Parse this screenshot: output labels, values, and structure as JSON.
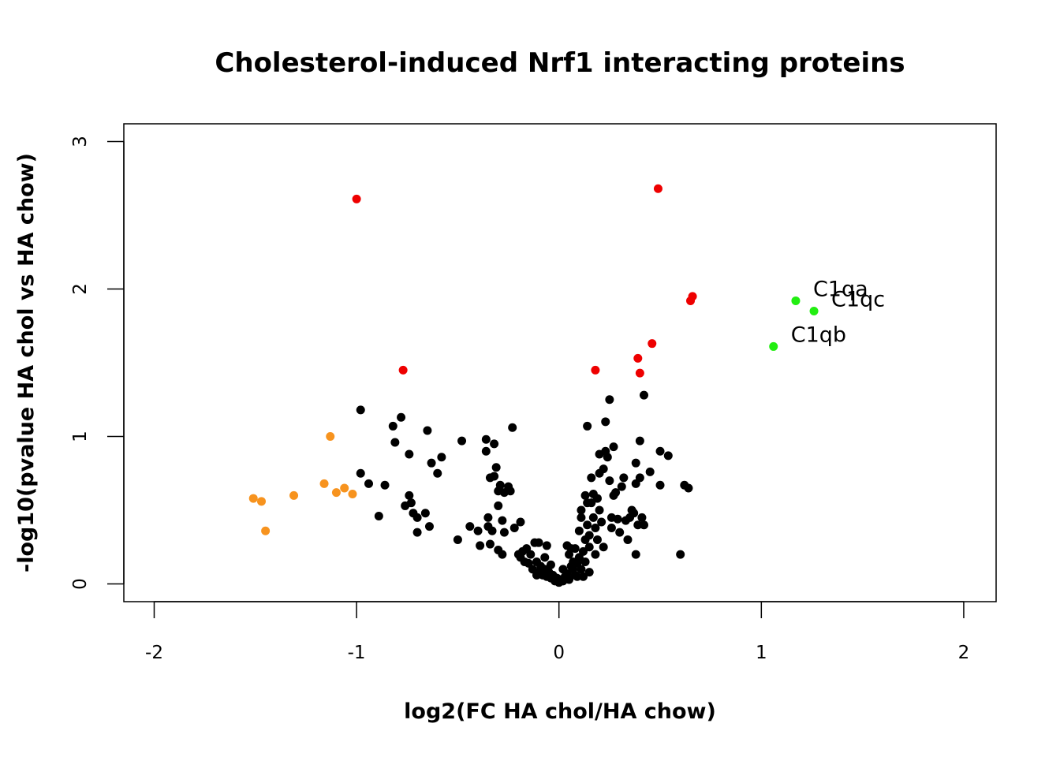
{
  "chart_data": {
    "type": "scatter",
    "title": "Cholesterol-induced Nrf1 interacting proteins",
    "xlabel": "log2(FC HA chol/HA chow)",
    "ylabel": "-log10(pvalue HA chol vs HA chow)",
    "xlim": [
      -2.15,
      2.16
    ],
    "ylim": [
      -0.12,
      3.12
    ],
    "xticks": [
      -2,
      -1,
      0,
      1,
      2
    ],
    "xtick_labels": [
      "-2",
      "-1",
      "0",
      "1",
      "2"
    ],
    "yticks": [
      0,
      1,
      2,
      3
    ],
    "ytick_labels": [
      "0",
      "1",
      "2",
      "3"
    ],
    "grid": false,
    "legend": "none",
    "colors": {
      "black": "#000000",
      "red": "#ee0000",
      "orange": "#f7931e",
      "green": "#22ee11"
    },
    "points": {
      "black": [
        [
          -0.98,
          1.18
        ],
        [
          -0.82,
          1.07
        ],
        [
          -0.78,
          1.13
        ],
        [
          -0.65,
          1.04
        ],
        [
          -0.81,
          0.96
        ],
        [
          -0.74,
          0.88
        ],
        [
          -0.63,
          0.82
        ],
        [
          -0.58,
          0.86
        ],
        [
          -0.6,
          0.75
        ],
        [
          -0.98,
          0.75
        ],
        [
          -0.94,
          0.68
        ],
        [
          -0.86,
          0.67
        ],
        [
          -0.76,
          0.53
        ],
        [
          -0.74,
          0.6
        ],
        [
          -0.73,
          0.55
        ],
        [
          -0.72,
          0.48
        ],
        [
          -0.7,
          0.45
        ],
        [
          -0.66,
          0.48
        ],
        [
          -0.64,
          0.39
        ],
        [
          -0.7,
          0.35
        ],
        [
          -0.89,
          0.46
        ],
        [
          -0.48,
          0.97
        ],
        [
          -0.36,
          0.98
        ],
        [
          -0.36,
          0.9
        ],
        [
          -0.32,
          0.95
        ],
        [
          -0.23,
          1.06
        ],
        [
          -0.34,
          0.72
        ],
        [
          -0.32,
          0.73
        ],
        [
          -0.31,
          0.79
        ],
        [
          -0.3,
          0.63
        ],
        [
          -0.29,
          0.67
        ],
        [
          -0.27,
          0.62
        ],
        [
          -0.25,
          0.66
        ],
        [
          -0.24,
          0.63
        ],
        [
          -0.35,
          0.45
        ],
        [
          -0.35,
          0.39
        ],
        [
          -0.33,
          0.36
        ],
        [
          -0.3,
          0.53
        ],
        [
          -0.28,
          0.43
        ],
        [
          -0.27,
          0.35
        ],
        [
          -0.22,
          0.38
        ],
        [
          -0.19,
          0.42
        ],
        [
          -0.5,
          0.3
        ],
        [
          -0.44,
          0.39
        ],
        [
          -0.4,
          0.36
        ],
        [
          -0.39,
          0.26
        ],
        [
          -0.34,
          0.27
        ],
        [
          -0.3,
          0.23
        ],
        [
          -0.28,
          0.2
        ],
        [
          -0.2,
          0.2
        ],
        [
          -0.19,
          0.18
        ],
        [
          -0.18,
          0.22
        ],
        [
          -0.17,
          0.15
        ],
        [
          -0.16,
          0.24
        ],
        [
          -0.15,
          0.14
        ],
        [
          -0.14,
          0.2
        ],
        [
          -0.13,
          0.1
        ],
        [
          -0.12,
          0.28
        ],
        [
          -0.11,
          0.15
        ],
        [
          -0.1,
          0.28
        ],
        [
          -0.1,
          0.08
        ],
        [
          -0.09,
          0.12
        ],
        [
          -0.08,
          0.06
        ],
        [
          -0.07,
          0.1
        ],
        [
          -0.06,
          0.26
        ],
        [
          -0.06,
          0.05
        ],
        [
          -0.05,
          0.08
        ],
        [
          -0.04,
          0.04
        ],
        [
          -0.03,
          0.06
        ],
        [
          -0.02,
          0.02
        ],
        [
          -0.01,
          0.04
        ],
        [
          0.0,
          0.01
        ],
        [
          0.01,
          0.03
        ],
        [
          0.02,
          0.02
        ],
        [
          0.03,
          0.05
        ],
        [
          0.04,
          0.07
        ],
        [
          0.04,
          0.26
        ],
        [
          0.05,
          0.2
        ],
        [
          0.05,
          0.03
        ],
        [
          0.06,
          0.24
        ],
        [
          0.07,
          0.1
        ],
        [
          0.08,
          0.06
        ],
        [
          0.09,
          0.14
        ],
        [
          0.1,
          0.18
        ],
        [
          0.1,
          0.36
        ],
        [
          0.11,
          0.45
        ],
        [
          0.11,
          0.5
        ],
        [
          0.12,
          0.22
        ],
        [
          0.12,
          0.05
        ],
        [
          0.13,
          0.6
        ],
        [
          0.13,
          0.3
        ],
        [
          0.14,
          0.55
        ],
        [
          0.14,
          0.4
        ],
        [
          0.15,
          0.33
        ],
        [
          0.15,
          0.25
        ],
        [
          0.15,
          0.08
        ],
        [
          0.16,
          0.72
        ],
        [
          0.16,
          0.55
        ],
        [
          0.17,
          0.61
        ],
        [
          0.17,
          0.45
        ],
        [
          0.18,
          0.38
        ],
        [
          0.19,
          0.58
        ],
        [
          0.19,
          0.3
        ],
        [
          0.2,
          0.88
        ],
        [
          0.2,
          0.75
        ],
        [
          0.2,
          0.5
        ],
        [
          0.21,
          0.42
        ],
        [
          0.22,
          0.78
        ],
        [
          0.22,
          0.25
        ],
        [
          0.23,
          1.1
        ],
        [
          0.23,
          0.9
        ],
        [
          0.24,
          0.86
        ],
        [
          0.25,
          1.25
        ],
        [
          0.25,
          0.7
        ],
        [
          0.26,
          0.45
        ],
        [
          0.26,
          0.38
        ],
        [
          0.27,
          0.93
        ],
        [
          0.27,
          0.6
        ],
        [
          0.28,
          0.62
        ],
        [
          0.29,
          0.44
        ],
        [
          0.3,
          0.35
        ],
        [
          0.31,
          0.66
        ],
        [
          0.32,
          0.72
        ],
        [
          0.33,
          0.43
        ],
        [
          0.34,
          0.3
        ],
        [
          0.35,
          0.45
        ],
        [
          0.36,
          0.5
        ],
        [
          0.37,
          0.48
        ],
        [
          0.38,
          0.82
        ],
        [
          0.38,
          0.68
        ],
        [
          0.38,
          0.2
        ],
        [
          0.39,
          0.4
        ],
        [
          0.4,
          0.97
        ],
        [
          0.4,
          0.72
        ],
        [
          0.41,
          0.45
        ],
        [
          0.42,
          1.28
        ],
        [
          0.42,
          0.4
        ],
        [
          0.45,
          0.76
        ],
        [
          0.5,
          0.9
        ],
        [
          0.5,
          0.67
        ],
        [
          0.54,
          0.87
        ],
        [
          0.6,
          0.2
        ],
        [
          0.62,
          0.67
        ],
        [
          0.64,
          0.65
        ],
        [
          0.14,
          1.07
        ],
        [
          0.07,
          0.15
        ],
        [
          0.08,
          0.24
        ],
        [
          0.11,
          0.1
        ],
        [
          0.13,
          0.15
        ],
        [
          0.18,
          0.2
        ],
        [
          -0.11,
          0.06
        ],
        [
          -0.07,
          0.18
        ],
        [
          -0.04,
          0.13
        ],
        [
          0.02,
          0.1
        ],
        [
          0.06,
          0.12
        ],
        [
          0.09,
          0.05
        ]
      ],
      "red": [
        [
          -1.0,
          2.61
        ],
        [
          0.49,
          2.68
        ],
        [
          0.66,
          1.95
        ],
        [
          0.65,
          1.92
        ],
        [
          0.46,
          1.63
        ],
        [
          0.39,
          1.53
        ],
        [
          0.4,
          1.43
        ],
        [
          -0.77,
          1.45
        ],
        [
          0.18,
          1.45
        ]
      ],
      "orange": [
        [
          -1.13,
          1.0
        ],
        [
          -1.51,
          0.58
        ],
        [
          -1.47,
          0.56
        ],
        [
          -1.31,
          0.6
        ],
        [
          -1.16,
          0.68
        ],
        [
          -1.1,
          0.62
        ],
        [
          -1.06,
          0.65
        ],
        [
          -1.02,
          0.61
        ],
        [
          -1.45,
          0.36
        ]
      ],
      "green": [
        {
          "x": 1.17,
          "y": 1.92,
          "label": "C1qa"
        },
        {
          "x": 1.26,
          "y": 1.85,
          "label": "C1qc"
        },
        {
          "x": 1.06,
          "y": 1.61,
          "label": "C1qb"
        }
      ]
    }
  }
}
